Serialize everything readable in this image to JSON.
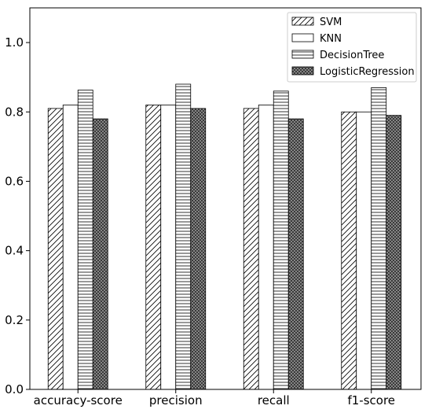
{
  "chart_data": {
    "type": "bar",
    "title": "",
    "xlabel": "",
    "ylabel": "",
    "categories": [
      "accuracy-score",
      "precision",
      "recall",
      "f1-score"
    ],
    "series": [
      {
        "name": "SVM",
        "values": [
          0.81,
          0.82,
          0.81,
          0.8
        ],
        "pattern": "diagonal-hatch"
      },
      {
        "name": "KNN",
        "values": [
          0.82,
          0.82,
          0.82,
          0.8
        ],
        "pattern": "plain-white"
      },
      {
        "name": "DecisionTree",
        "values": [
          0.863,
          0.88,
          0.86,
          0.87
        ],
        "pattern": "horizontal-lines"
      },
      {
        "name": "LogisticRegression",
        "values": [
          0.78,
          0.81,
          0.78,
          0.79
        ],
        "pattern": "dense-dots"
      }
    ],
    "ylim": [
      0,
      1.1
    ],
    "yticks": [
      "0.0",
      "0.2",
      "0.4",
      "0.6",
      "0.8",
      "1.0"
    ],
    "ytick_values": [
      0,
      0.2,
      0.4,
      0.6,
      0.8,
      1.0
    ],
    "grid": false,
    "legend": "top-right",
    "colors": {
      "edge": "#000000",
      "fill": "#ffffff",
      "dots": "#555555"
    }
  }
}
